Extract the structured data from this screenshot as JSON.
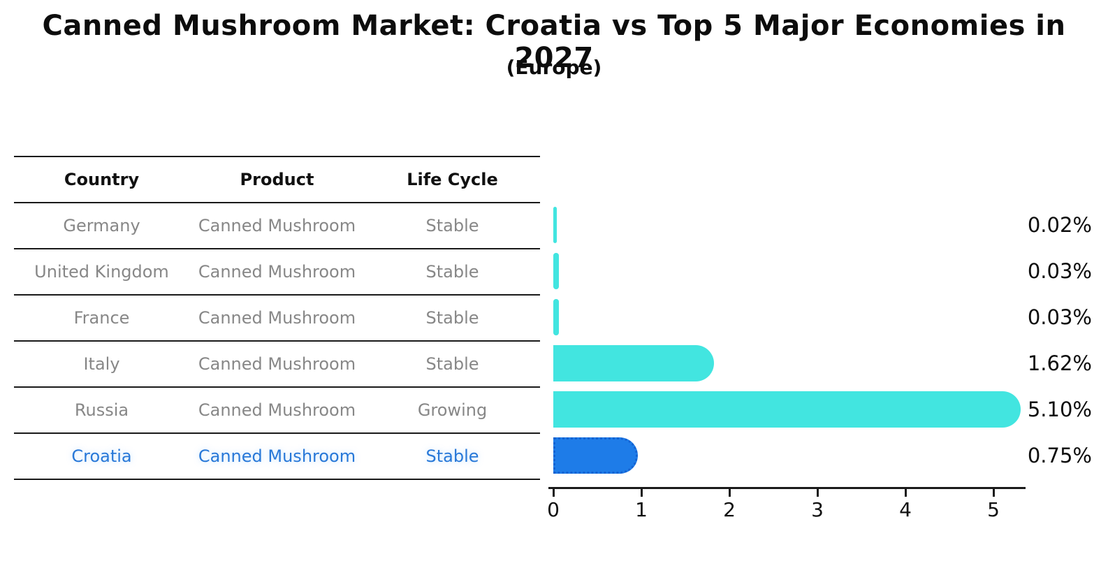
{
  "title": "Canned Mushroom Market: Croatia vs Top 5 Major Economies in 2027",
  "subtitle": "(Europe)",
  "colors": {
    "bar_default": "#42e5e0",
    "bar_highlight": "#1e7ce8",
    "highlight_text": "#2878d8",
    "table_text": "#878787",
    "line_color": "#1a1a1a"
  },
  "table": {
    "headers": [
      "Country",
      "Product",
      "Life Cycle"
    ],
    "rows": [
      {
        "country": "Germany",
        "product": "Canned Mushroom",
        "life_cycle": "Stable",
        "highlight": false
      },
      {
        "country": "United Kingdom",
        "product": "Canned Mushroom",
        "life_cycle": "Stable",
        "highlight": false
      },
      {
        "country": "France",
        "product": "Canned Mushroom",
        "life_cycle": "Stable",
        "highlight": false
      },
      {
        "country": "Italy",
        "product": "Canned Mushroom",
        "life_cycle": "Stable",
        "highlight": false
      },
      {
        "country": "Russia",
        "product": "Canned Mushroom",
        "life_cycle": "Growing",
        "highlight": false
      },
      {
        "country": "Croatia",
        "product": "Canned Mushroom",
        "life_cycle": "Stable",
        "highlight": true
      }
    ]
  },
  "chart_data": {
    "type": "bar",
    "orientation": "horizontal",
    "title": "Canned Mushroom Market: Croatia vs Top 5 Major Economies in 2027 (Europe)",
    "categories": [
      "Germany",
      "United Kingdom",
      "France",
      "Italy",
      "Russia",
      "Croatia"
    ],
    "values": [
      0.02,
      0.03,
      0.03,
      1.62,
      5.1,
      0.75
    ],
    "value_labels": [
      "0.02%",
      "0.03%",
      "0.03%",
      "1.62%",
      "5.10%",
      "0.75%"
    ],
    "highlight_index": 5,
    "x_ticks": [
      "0",
      "1",
      "2",
      "3",
      "4",
      "5"
    ],
    "xlim": [
      0,
      5.4
    ],
    "xlabel": "",
    "ylabel": "",
    "grid": false,
    "legend_position": "none"
  }
}
